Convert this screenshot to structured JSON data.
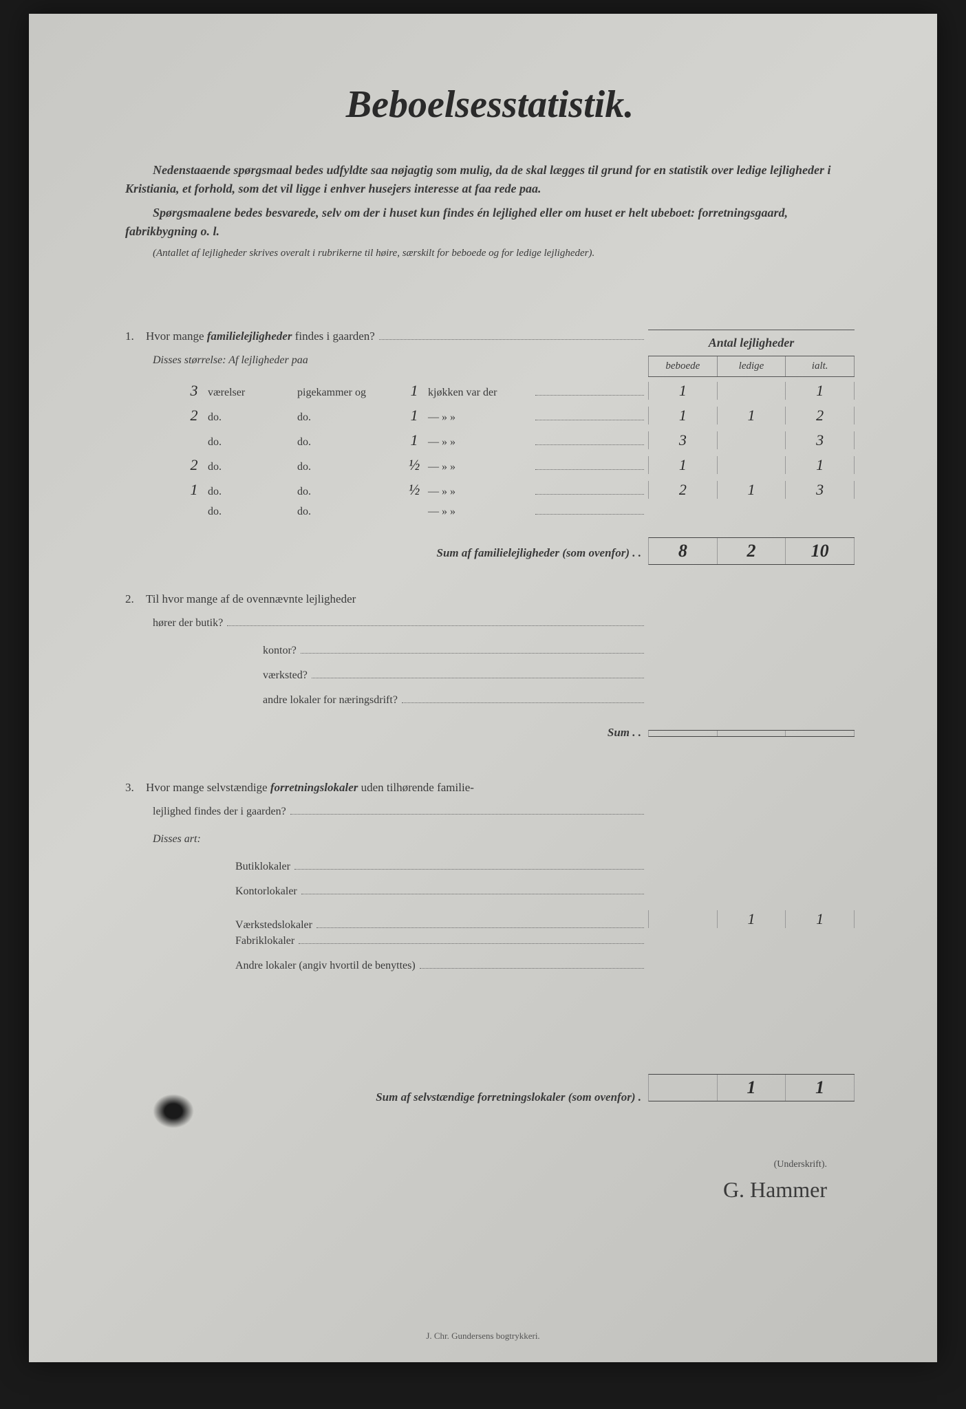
{
  "title": "Beboelsesstatistik.",
  "intro1": "Nedenstaaende spørgsmaal bedes udfyldte saa nøjagtig som mulig, da de skal lægges til grund for en statistik over ledige lejligheder i Kristiania, et forhold, som det vil ligge i enhver husejers interesse at faa rede paa.",
  "intro2": "Spørgsmaalene bedes besvarede, selv om der i huset kun findes én lejlighed eller om huset er helt ubeboet: forretningsgaard, fabrikbygning o. l.",
  "intro_note": "(Antallet af lejligheder skrives overalt i rubrikerne til høire, særskilt for beboede og for ledige lejligheder).",
  "col_header_main": "Antal lejligheder",
  "col_headers": {
    "c1": "beboede",
    "c2": "ledige",
    "c3": "ialt."
  },
  "q1": {
    "num": "1.",
    "text_a": "Hvor mange ",
    "text_em": "familielejligheder",
    "text_b": " findes i gaarden?",
    "sub_label": "Disses størrelse:   Af lejligheder paa",
    "row_labels": {
      "vaer": "værelser",
      "pige": "pigekammer og",
      "kjok": "kjøkken var der",
      "do": "do."
    },
    "rows": [
      {
        "v": "3",
        "p": "",
        "k": "1",
        "beboede": "1",
        "ledige": "",
        "ialt": "1"
      },
      {
        "v": "2",
        "p": "",
        "k": "1",
        "beboede": "1",
        "ledige": "1",
        "ialt": "2"
      },
      {
        "v": "",
        "p": "",
        "k": "1",
        "beboede": "3",
        "ledige": "",
        "ialt": "3"
      },
      {
        "v": "2",
        "p": "",
        "k": "½",
        "beboede": "1",
        "ledige": "",
        "ialt": "1"
      },
      {
        "v": "1",
        "p": "",
        "k": "½",
        "beboede": "2",
        "ledige": "1",
        "ialt": "3"
      },
      {
        "v": "",
        "p": "",
        "k": "",
        "beboede": "",
        "ledige": "",
        "ialt": ""
      }
    ],
    "sum_label": "Sum af familielejligheder (som ovenfor) . .",
    "sum": {
      "beboede": "8",
      "ledige": "2",
      "ialt": "10"
    }
  },
  "q2": {
    "num": "2.",
    "text": "Til hvor mange af de ovennævnte lejligheder",
    "lines": [
      {
        "label": "hører der butik?",
        "beboede": "",
        "ledige": "",
        "ialt": ""
      },
      {
        "label": "kontor?",
        "beboede": "",
        "ledige": "",
        "ialt": ""
      },
      {
        "label": "værksted?",
        "beboede": "",
        "ledige": "",
        "ialt": ""
      },
      {
        "label": "andre lokaler for næringsdrift?",
        "beboede": "",
        "ledige": "",
        "ialt": ""
      }
    ],
    "sum_label": "Sum . .",
    "sum": {
      "beboede": "",
      "ledige": "",
      "ialt": ""
    }
  },
  "q3": {
    "num": "3.",
    "text_a": "Hvor mange selvstændige ",
    "text_em": "forretningslokaler",
    "text_b": " uden tilhørende familie-",
    "text_c": "lejlighed findes der i gaarden?",
    "sub_label": "Disses art:",
    "lines": [
      {
        "label": "Butiklokaler",
        "beboede": "",
        "ledige": "",
        "ialt": ""
      },
      {
        "label": "Kontorlokaler",
        "beboede": "",
        "ledige": "",
        "ialt": ""
      },
      {
        "label": "Værkstedslokaler",
        "beboede": "",
        "ledige": "1",
        "ialt": "1"
      },
      {
        "label": "Fabriklokaler",
        "beboede": "",
        "ledige": "",
        "ialt": ""
      },
      {
        "label": "Andre lokaler (angiv hvortil de benyttes)",
        "beboede": "",
        "ledige": "",
        "ialt": ""
      }
    ],
    "sum_label": "Sum af selvstændige forretningslokaler (som ovenfor) .",
    "sum": {
      "beboede": "",
      "ledige": "1",
      "ialt": "1"
    }
  },
  "signature_label": "(Underskrift).",
  "signature": "G. Hammer",
  "printer": "J. Chr. Gundersens bogtrykkeri."
}
